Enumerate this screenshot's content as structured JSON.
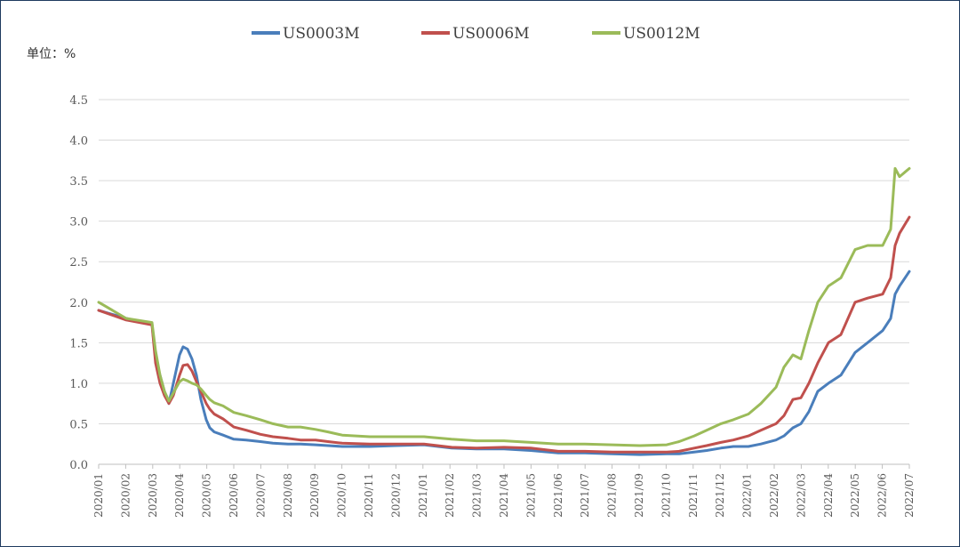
{
  "chart_data": {
    "type": "line",
    "unit_label": "单位：%",
    "y_ticks": [
      "0.0",
      "0.5",
      "1.0",
      "1.5",
      "2.0",
      "2.5",
      "3.0",
      "3.5",
      "4.0",
      "4.5"
    ],
    "ylim": [
      0,
      4.5
    ],
    "x_ticks": [
      "2020/01",
      "2020/02",
      "2020/03",
      "2020/04",
      "2020/05",
      "2020/06",
      "2020/07",
      "2020/08",
      "2020/09",
      "2020/10",
      "2020/11",
      "2020/12",
      "2021/01",
      "2021/02",
      "2021/03",
      "2021/04",
      "2021/05",
      "2021/06",
      "2021/07",
      "2021/08",
      "2021/09",
      "2021/10",
      "2021/11",
      "2021/12",
      "2022/01",
      "2022/02",
      "2022/03",
      "2022/04",
      "2022/05",
      "2022/06",
      "2022/07"
    ],
    "grid": "horizontal",
    "legend_position": "top",
    "x": [
      "2020-01-01",
      "2020-02-01",
      "2020-03-01",
      "2020-03-05",
      "2020-03-10",
      "2020-03-15",
      "2020-03-20",
      "2020-03-25",
      "2020-04-01",
      "2020-04-05",
      "2020-04-10",
      "2020-04-15",
      "2020-04-20",
      "2020-04-25",
      "2020-05-01",
      "2020-05-05",
      "2020-05-10",
      "2020-05-20",
      "2020-06-01",
      "2020-06-15",
      "2020-07-01",
      "2020-07-15",
      "2020-08-01",
      "2020-08-15",
      "2020-09-01",
      "2020-09-15",
      "2020-10-01",
      "2020-11-01",
      "2020-12-01",
      "2021-01-01",
      "2021-02-01",
      "2021-03-01",
      "2021-04-01",
      "2021-05-01",
      "2021-06-01",
      "2021-07-01",
      "2021-08-01",
      "2021-09-01",
      "2021-10-01",
      "2021-10-15",
      "2021-11-01",
      "2021-11-15",
      "2021-12-01",
      "2021-12-15",
      "2022-01-01",
      "2022-01-15",
      "2022-02-01",
      "2022-02-10",
      "2022-02-20",
      "2022-03-01",
      "2022-03-10",
      "2022-03-20",
      "2022-04-01",
      "2022-04-15",
      "2022-05-01",
      "2022-05-15",
      "2022-06-01",
      "2022-06-10",
      "2022-06-15",
      "2022-06-20",
      "2022-07-01"
    ],
    "series": [
      {
        "name": "US0003M",
        "color": "#4a7ebb",
        "values": [
          1.9,
          1.8,
          1.73,
          1.3,
          1.1,
          0.9,
          0.75,
          1.0,
          1.35,
          1.45,
          1.42,
          1.3,
          1.1,
          0.8,
          0.55,
          0.45,
          0.4,
          0.36,
          0.31,
          0.3,
          0.28,
          0.26,
          0.25,
          0.25,
          0.24,
          0.23,
          0.22,
          0.22,
          0.23,
          0.24,
          0.2,
          0.19,
          0.19,
          0.17,
          0.14,
          0.14,
          0.13,
          0.12,
          0.13,
          0.13,
          0.15,
          0.17,
          0.2,
          0.22,
          0.22,
          0.25,
          0.3,
          0.35,
          0.45,
          0.5,
          0.65,
          0.9,
          1.0,
          1.1,
          1.38,
          1.5,
          1.65,
          1.8,
          2.1,
          2.2,
          2.38
        ]
      },
      {
        "name": "US0006M",
        "color": "#c0504d",
        "values": [
          1.9,
          1.78,
          1.72,
          1.25,
          1.0,
          0.85,
          0.75,
          0.85,
          1.1,
          1.22,
          1.23,
          1.15,
          1.02,
          0.9,
          0.75,
          0.68,
          0.62,
          0.56,
          0.46,
          0.42,
          0.37,
          0.34,
          0.32,
          0.3,
          0.3,
          0.28,
          0.26,
          0.25,
          0.25,
          0.25,
          0.21,
          0.2,
          0.21,
          0.2,
          0.16,
          0.16,
          0.15,
          0.15,
          0.15,
          0.16,
          0.2,
          0.23,
          0.27,
          0.3,
          0.35,
          0.42,
          0.5,
          0.6,
          0.8,
          0.82,
          1.0,
          1.25,
          1.5,
          1.6,
          2.0,
          2.05,
          2.1,
          2.3,
          2.7,
          2.85,
          3.05
        ]
      },
      {
        "name": "US0012M",
        "color": "#9bbb59",
        "values": [
          2.0,
          1.8,
          1.75,
          1.4,
          1.1,
          0.9,
          0.78,
          0.88,
          1.02,
          1.05,
          1.03,
          1.0,
          0.98,
          0.93,
          0.85,
          0.8,
          0.76,
          0.72,
          0.64,
          0.6,
          0.55,
          0.5,
          0.46,
          0.46,
          0.43,
          0.4,
          0.36,
          0.34,
          0.34,
          0.34,
          0.31,
          0.29,
          0.29,
          0.27,
          0.25,
          0.25,
          0.24,
          0.23,
          0.24,
          0.28,
          0.35,
          0.42,
          0.5,
          0.55,
          0.62,
          0.75,
          0.95,
          1.2,
          1.35,
          1.3,
          1.65,
          2.0,
          2.2,
          2.3,
          2.65,
          2.7,
          2.7,
          2.9,
          3.65,
          3.55,
          3.65
        ]
      }
    ]
  }
}
